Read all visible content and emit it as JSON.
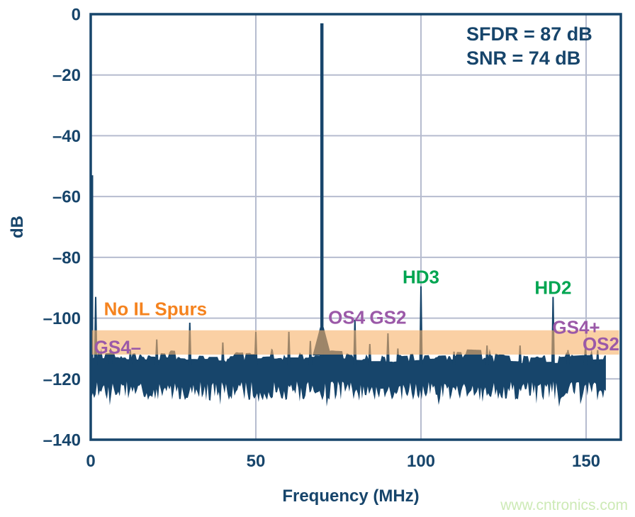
{
  "watermark": {
    "text": "www.cntronics.com"
  },
  "stats_box": {
    "lines": [
      "SFDR = 87 dB",
      "SNR = 74 dB"
    ]
  },
  "chart_data": {
    "type": "line",
    "title": "",
    "xlabel": "Frequency (MHz)",
    "ylabel": "dB",
    "xlim": [
      0,
      160
    ],
    "ylim": [
      -140,
      0
    ],
    "xticks": [
      0,
      50,
      100,
      150
    ],
    "yticks": [
      0,
      -20,
      -40,
      -60,
      -80,
      -100,
      -120,
      -140
    ],
    "grid": true,
    "legend": "none",
    "colors": {
      "navy": "#17456B",
      "grid": "#b6bccf",
      "band_fill": "rgba(246,176,104,0.6)",
      "orange": "#F5831F",
      "purple": "#9B59A8",
      "green": "#00A551",
      "watermark": "#cdeab6",
      "background": "#ffffff"
    },
    "carrier": {
      "freq_mhz": 70,
      "level_db": -3,
      "skirt_top_db": -103,
      "skirt_base_db": -112.3,
      "skirt_halfwidth_mhz": 2.8
    },
    "spurs": [
      {
        "f": 0.3,
        "db": -53,
        "note": "dc-edge"
      },
      {
        "f": 1.5,
        "db": -93
      },
      {
        "f": 6,
        "db": -110
      },
      {
        "f": 12,
        "db": -110.5
      },
      {
        "f": 20,
        "db": -107
      },
      {
        "f": 30,
        "db": -101.5
      },
      {
        "f": 40,
        "db": -108
      },
      {
        "f": 50,
        "db": -104.5
      },
      {
        "f": 60,
        "db": -104.5
      },
      {
        "f": 66.5,
        "db": -107.5
      },
      {
        "f": 80,
        "db": -100.5,
        "note": "OS4 location"
      },
      {
        "f": 84.5,
        "db": -108.5
      },
      {
        "f": 90,
        "db": -105,
        "note": "GS2 location"
      },
      {
        "f": 93,
        "db": -110
      },
      {
        "f": 100,
        "db": -89.5,
        "note": "HD3"
      },
      {
        "f": 110,
        "db": -111
      },
      {
        "f": 120,
        "db": -109
      },
      {
        "f": 130,
        "db": -109
      },
      {
        "f": 140,
        "db": -93,
        "note": "HD2"
      },
      {
        "f": 144.5,
        "db": -110.5
      },
      {
        "f": 149.8,
        "db": -109
      },
      {
        "f": 153.5,
        "db": -110.5
      }
    ],
    "noise_floor": {
      "top_db": -112.5,
      "bottom_db": -123,
      "min_db": -129.5,
      "start_mhz": 0.2,
      "end_mhz": 156,
      "seed": 42
    },
    "highlight_band": {
      "from_db": -104,
      "to_db": -112,
      "meaning": "No IL Spurs region"
    },
    "labels": [
      {
        "text": "No IL Spurs",
        "x_mhz": 4,
        "y_db": -97,
        "color": "orange",
        "anchor": "start"
      },
      {
        "text": "GS4–",
        "x_mhz": 1,
        "y_db": -109.5,
        "color": "purple",
        "anchor": "start"
      },
      {
        "text": "OS4",
        "x_mhz": 77.5,
        "y_db": -99.7,
        "color": "purple",
        "anchor": "middle"
      },
      {
        "text": "GS2",
        "x_mhz": 90,
        "y_db": -99.7,
        "color": "purple",
        "anchor": "middle"
      },
      {
        "text": "HD3",
        "x_mhz": 100,
        "y_db": -86.5,
        "color": "green",
        "anchor": "middle"
      },
      {
        "text": "HD2",
        "x_mhz": 140,
        "y_db": -90,
        "color": "green",
        "anchor": "middle"
      },
      {
        "text": "GS4+",
        "x_mhz": 147,
        "y_db": -103,
        "color": "purple",
        "anchor": "middle"
      },
      {
        "text": "OS2",
        "x_mhz": 154.5,
        "y_db": -108.5,
        "color": "purple",
        "anchor": "middle"
      }
    ]
  }
}
